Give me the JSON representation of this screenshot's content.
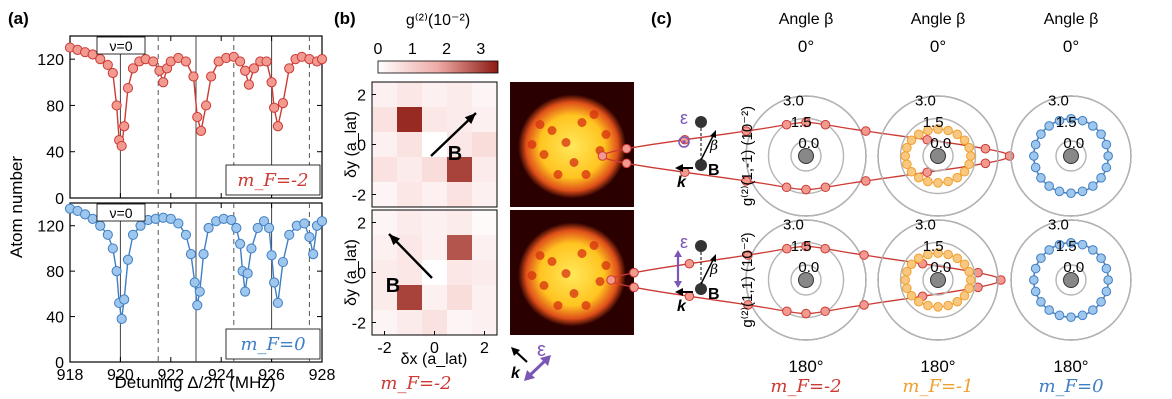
{
  "panel_a": {
    "letter": "(a)",
    "ylabel": "Atom number",
    "xlabel": "Detuning Δ/2π (MHz)",
    "nu_label": "ν=0",
    "top": {
      "legend": "m_F=-2",
      "color": "#cc3a34",
      "fill": "#f29a90"
    },
    "bottom": {
      "legend": "m_F=0",
      "color": "#3f7fc4",
      "fill": "#9fc6ec"
    }
  },
  "panel_b": {
    "letter": "(b)",
    "cbar_title": "g⁽²⁾(10⁻²)",
    "cbar_ticks": [
      "0",
      "1",
      "2",
      "3"
    ],
    "ylabel": "δy (a_lat)",
    "xlabel": "δx (a_lat)",
    "B_label": "B",
    "bottom_label": "m_F=-2",
    "k_label": "k",
    "eps_label": "ε"
  },
  "panel_c": {
    "letter": "(c)",
    "angle_title": "Angle β",
    "top_angle": "0°",
    "bottom_angle": "180°",
    "ring_labels": [
      "3.0",
      "1.5",
      "0.0"
    ],
    "ylabel_top": "g⁽²⁾(1,-1) (10⁻²)",
    "ylabel_bottom": "g⁽²⁾(1,1) (10⁻²)",
    "beta": "β",
    "k_label": "k",
    "B_label": "B",
    "eps_label": "ε",
    "columns": [
      {
        "label": "m_F=-2",
        "color": "#cc3a34",
        "fill": "#f29a90"
      },
      {
        "label": "m_F=-1",
        "color": "#f0a030",
        "fill": "#f9c880"
      },
      {
        "label": "m_F=0",
        "color": "#3f7fc4",
        "fill": "#9fc6ec"
      }
    ]
  },
  "chart_data": [
    {
      "type": "line",
      "title": "",
      "xlabel": "Detuning Δ/2π (MHz)",
      "ylabel": "Atom number",
      "xlim": [
        918,
        928
      ],
      "ylim": [
        0,
        140
      ],
      "yticks": [
        0,
        40,
        80,
        120
      ],
      "xticks": [
        918,
        920,
        922,
        924,
        926,
        928
      ],
      "grid": false,
      "series": [
        {
          "name": "m_F=-2",
          "x": [
            918.0,
            918.3,
            918.6,
            918.9,
            919.2,
            919.5,
            919.7,
            919.85,
            919.95,
            920.05,
            920.15,
            920.3,
            920.5,
            920.75,
            921.0,
            921.3,
            921.55,
            921.7,
            921.85,
            922.0,
            922.3,
            922.6,
            922.9,
            923.05,
            923.2,
            923.4,
            923.6,
            923.9,
            924.2,
            924.5,
            924.75,
            924.95,
            925.1,
            925.3,
            925.55,
            925.8,
            926.0,
            926.1,
            926.25,
            926.45,
            926.7,
            926.95,
            927.2,
            927.5,
            927.8,
            928.0
          ],
          "y": [
            130,
            128,
            126,
            124,
            120,
            115,
            108,
            80,
            50,
            45,
            62,
            95,
            112,
            118,
            120,
            118,
            110,
            100,
            112,
            118,
            121,
            118,
            105,
            70,
            58,
            80,
            105,
            118,
            121,
            122,
            118,
            110,
            98,
            112,
            118,
            118,
            100,
            78,
            62,
            82,
            112,
            120,
            122,
            120,
            118,
            120
          ]
        },
        {
          "name": "m_F=0",
          "x": [
            918.0,
            918.3,
            918.6,
            918.9,
            919.2,
            919.5,
            919.7,
            919.85,
            919.95,
            920.05,
            920.15,
            920.3,
            920.5,
            920.8,
            921.1,
            921.4,
            921.7,
            922.0,
            922.3,
            922.6,
            922.8,
            922.95,
            923.05,
            923.15,
            923.3,
            923.5,
            923.8,
            924.1,
            924.4,
            924.6,
            924.75,
            924.85,
            924.95,
            925.05,
            925.2,
            925.45,
            925.7,
            925.9,
            926.0,
            926.1,
            926.25,
            926.45,
            926.7,
            927.0,
            927.3,
            927.5,
            927.65,
            927.8,
            928.0
          ],
          "y": [
            135,
            133,
            130,
            126,
            120,
            112,
            100,
            80,
            52,
            38,
            55,
            90,
            112,
            120,
            125,
            126,
            127,
            126,
            122,
            112,
            95,
            70,
            50,
            62,
            95,
            118,
            124,
            126,
            125,
            118,
            104,
            80,
            62,
            78,
            100,
            118,
            124,
            118,
            94,
            70,
            52,
            88,
            112,
            120,
            122,
            110,
            95,
            120,
            124
          ]
        }
      ],
      "vlines_solid": [
        920.0,
        923.0,
        926.0
      ],
      "vlines_dashed": [
        921.5,
        924.5,
        927.5
      ]
    },
    {
      "type": "heatmap",
      "title": "",
      "xlabel": "δx (a_lat)",
      "ylabel": "δy (a_lat)",
      "x": [
        -2,
        -1,
        0,
        1,
        2
      ],
      "y": [
        2,
        1,
        0,
        -1,
        -2
      ],
      "colorbar_range": [
        0,
        3.5
      ],
      "top_values": [
        [
          0.3,
          0.5,
          0.3,
          0.4,
          0.2
        ],
        [
          0.6,
          3.3,
          0.5,
          0.4,
          0.3
        ],
        [
          0.3,
          0.6,
          0,
          0.5,
          0.7
        ],
        [
          0.6,
          0.4,
          0.7,
          3.0,
          0.4
        ],
        [
          0.2,
          0.5,
          0.3,
          0.6,
          0.3
        ]
      ],
      "bottom_values": [
        [
          0.2,
          0.4,
          0.3,
          0.4,
          0.1
        ],
        [
          0.3,
          0.5,
          0.3,
          2.8,
          0.3
        ],
        [
          0.4,
          0.5,
          0,
          0.5,
          0.4
        ],
        [
          0.4,
          3.0,
          0.3,
          0.7,
          0.3
        ],
        [
          0.2,
          0.4,
          0.6,
          0.2,
          0.3
        ]
      ]
    },
    {
      "type": "scatter",
      "title": "",
      "coordinate_system": "polar",
      "r_ticks": [
        0.0,
        1.5,
        3.0
      ],
      "angle_labels": [
        "0°",
        "180°"
      ],
      "series": [
        {
          "name": "m_F=-2, g(2)(1,-1)",
          "model": "dipole_horizontal",
          "amplitude": 3.6
        },
        {
          "name": "m_F=-1, g(2)(1,-1)",
          "model": "flat_ellipse",
          "amplitude": 1.3
        },
        {
          "name": "m_F=0, g(2)(1,-1)",
          "model": "isotropic",
          "amplitude": 1.1
        },
        {
          "name": "m_F=-2, g(2)(1,1)",
          "model": "dipole_horizontal",
          "amplitude": 3.4
        },
        {
          "name": "m_F=-1, g(2)(1,1)",
          "model": "flat_ellipse",
          "amplitude": 1.3
        },
        {
          "name": "m_F=0, g(2)(1,1)",
          "model": "isotropic",
          "amplitude": 1.1
        }
      ]
    }
  ]
}
